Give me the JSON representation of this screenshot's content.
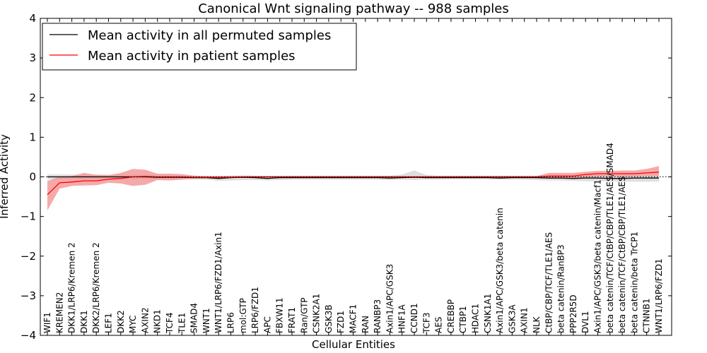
{
  "chart_data": {
    "type": "line",
    "title": "Canonical Wnt signaling pathway -- 988 samples",
    "xlabel": "Cellular Entities",
    "ylabel": "Inferred Activity",
    "ylim": [
      -4,
      4
    ],
    "yticks": [
      "4",
      "3",
      "2",
      "1",
      "0",
      "−1",
      "−2",
      "−3",
      "−4"
    ],
    "categories": [
      "WIF1",
      "KREMEN2",
      "DKK1/LRP6/Kremen 2",
      "DKK1",
      "DKK2/LRP6/Kremen 2",
      "LEF1",
      "DKK2",
      "MYC",
      "AXIN2",
      "NKD1",
      "TCF4",
      "TLE1",
      "SMAD4",
      "WNT1",
      "WNT1/LRP6/FZD1/Axin1",
      "LRP6",
      "mol:GTP",
      "LRP6/FZD1",
      "APC",
      "FBXW11",
      "FRAT1",
      "Ran/GTP",
      "CSNK2A1",
      "GSK3B",
      "FZD1",
      "MACF1",
      "RAN",
      "RANBP3",
      "Axin1/APC/GSK3",
      "HNF1A",
      "CCND1",
      "TCF3",
      "AES",
      "CREBBP",
      "CTBP1",
      "HDAC1",
      "CSNK1A1",
      "Axin1/APC/GSK3/beta catenin",
      "GSK3A",
      "AXIN1",
      "NLK",
      "CtBP/CBP/TCF/TLE1/AES",
      "beta catenin/RanBP3",
      "PPP2R5D",
      "DVL1",
      "Axin1/APC/GSK3/beta catenin/Macf1",
      "beta catenin/TCF/CtBP/CBP/TLE1/AES/SMAD4",
      "beta catenin/TCF/CtBP/CBP/TLE1/AES",
      "beta catenin/beta TrCP1",
      "CTNNB1",
      "WNT1/LRP6/FZD1"
    ],
    "series": [
      {
        "name": "Mean activity in all permuted samples",
        "color": "#000000",
        "band_color": "#d0d0d0",
        "values": [
          0,
          0,
          0,
          0,
          0,
          0,
          0,
          0,
          0,
          -0.01,
          -0.01,
          -0.01,
          -0.02,
          -0.02,
          -0.04,
          -0.02,
          -0.01,
          -0.02,
          -0.04,
          -0.02,
          -0.02,
          -0.02,
          -0.02,
          -0.02,
          -0.02,
          -0.02,
          -0.02,
          -0.02,
          -0.03,
          -0.02,
          -0.01,
          -0.02,
          -0.02,
          -0.02,
          -0.02,
          -0.02,
          -0.02,
          -0.03,
          -0.02,
          -0.02,
          -0.02,
          -0.03,
          -0.03,
          -0.04,
          -0.03,
          -0.03,
          -0.04,
          -0.04,
          -0.03,
          -0.03,
          -0.03
        ],
        "lower": [
          -0.06,
          -0.06,
          -0.06,
          -0.06,
          -0.06,
          -0.06,
          -0.06,
          -0.06,
          -0.06,
          -0.06,
          -0.06,
          -0.07,
          -0.07,
          -0.07,
          -0.1,
          -0.09,
          -0.08,
          -0.08,
          -0.09,
          -0.08,
          -0.07,
          -0.07,
          -0.07,
          -0.07,
          -0.07,
          -0.07,
          -0.07,
          -0.07,
          -0.08,
          -0.07,
          -0.08,
          -0.07,
          -0.07,
          -0.06,
          -0.06,
          -0.06,
          -0.06,
          -0.07,
          -0.07,
          -0.07,
          -0.08,
          -0.09,
          -0.09,
          -0.1,
          -0.11,
          -0.11,
          -0.11,
          -0.12,
          -0.12,
          -0.12,
          -0.12
        ],
        "upper": [
          0.06,
          0.06,
          0.06,
          0.06,
          0.06,
          0.06,
          0.06,
          0.06,
          0.06,
          0.05,
          0.05,
          0.04,
          0.03,
          0.02,
          0.02,
          0.03,
          0.04,
          0.03,
          0.02,
          0.03,
          0.03,
          0.03,
          0.03,
          0.03,
          0.03,
          0.03,
          0.03,
          0.03,
          0.03,
          0.06,
          0.16,
          0.05,
          0.03,
          0.03,
          0.03,
          0.03,
          0.03,
          0.03,
          0.03,
          0.03,
          0.03,
          0.03,
          0.03,
          0.04,
          0.05,
          0.05,
          0.05,
          0.05,
          0.05,
          0.05,
          0.05
        ]
      },
      {
        "name": "Mean activity in patient samples",
        "color": "#ff0000",
        "band_color": "#f28e8e",
        "values": [
          -0.45,
          -0.15,
          -0.13,
          -0.1,
          -0.1,
          -0.06,
          -0.04,
          0,
          0.01,
          0,
          0,
          0,
          -0.01,
          -0.01,
          -0.01,
          -0.01,
          0,
          0,
          0,
          0,
          0,
          0,
          0,
          0,
          0,
          0,
          0,
          0,
          0,
          0,
          0,
          0,
          0,
          0,
          0,
          0,
          0,
          0,
          0,
          0,
          0,
          0.02,
          0.02,
          0.02,
          0.06,
          0.08,
          0.08,
          0.08,
          0.08,
          0.1,
          0.12
        ],
        "lower": [
          -0.85,
          -0.3,
          -0.23,
          -0.22,
          -0.21,
          -0.15,
          -0.17,
          -0.23,
          -0.2,
          -0.08,
          -0.09,
          -0.07,
          -0.04,
          -0.04,
          -0.04,
          -0.03,
          -0.02,
          -0.02,
          -0.02,
          -0.03,
          -0.03,
          -0.02,
          -0.02,
          -0.02,
          -0.02,
          -0.02,
          -0.02,
          -0.02,
          -0.02,
          -0.02,
          -0.02,
          -0.02,
          -0.02,
          -0.02,
          -0.02,
          -0.02,
          -0.02,
          -0.02,
          -0.02,
          -0.02,
          -0.03,
          -0.03,
          -0.03,
          -0.03,
          0,
          0.01,
          0.01,
          0.01,
          0.01,
          0.02,
          0.02
        ],
        "upper": [
          -0.1,
          0,
          0.02,
          0.1,
          0.05,
          0.04,
          0.1,
          0.2,
          0.18,
          0.08,
          0.08,
          0.07,
          0.03,
          0.02,
          0.02,
          0.02,
          0.02,
          0.02,
          0.02,
          0.02,
          0.02,
          0.02,
          0.02,
          0.02,
          0.02,
          0.02,
          0.02,
          0.02,
          0.02,
          0.02,
          0.02,
          0.02,
          0.02,
          0.02,
          0.02,
          0.02,
          0.02,
          0.02,
          0.02,
          0.02,
          0.02,
          0.1,
          0.1,
          0.1,
          0.13,
          0.15,
          0.15,
          0.16,
          0.16,
          0.2,
          0.27
        ]
      }
    ],
    "legend_position": "top-left",
    "reference_line": 0
  }
}
